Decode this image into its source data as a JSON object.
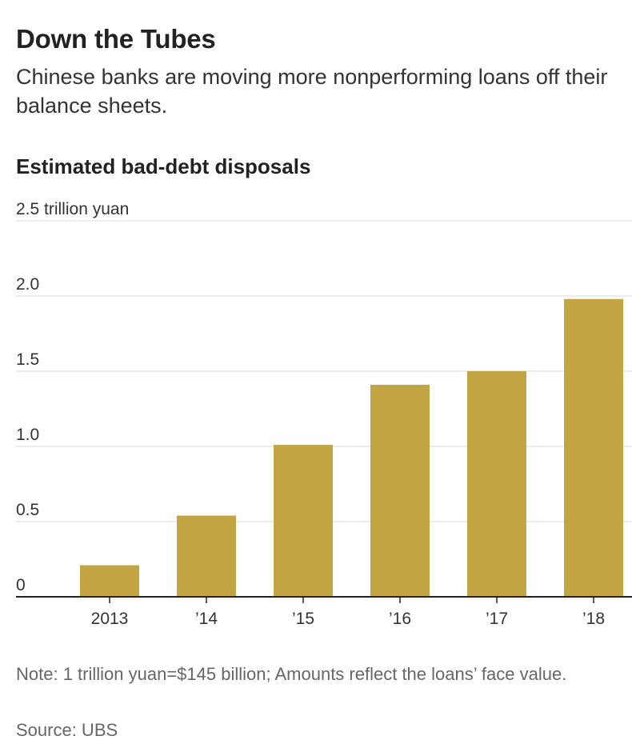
{
  "header": {
    "title": "Down the Tubes",
    "subtitle": "Chinese banks are moving more nonperforming loans off their balance sheets."
  },
  "chart_data": {
    "type": "bar",
    "title": "Estimated bad-debt disposals",
    "xlabel": "",
    "ylabel": "",
    "ylim": [
      0,
      2.5
    ],
    "y_ticks": [
      0,
      0.5,
      1.0,
      1.5,
      2.0,
      2.5
    ],
    "y_tick_labels": [
      "0",
      "0.5",
      "1.0",
      "1.5",
      "2.0",
      "2.5 trillion yuan"
    ],
    "categories": [
      "2013",
      "’14",
      "’15",
      "’16",
      "’17",
      "’18"
    ],
    "values": [
      0.21,
      0.54,
      1.01,
      1.41,
      1.5,
      1.98
    ],
    "grid": true,
    "bar_color": "#c4a544"
  },
  "footer": {
    "note": "Note: 1 trillion yuan=$145 billion; Amounts reflect the loans’ face value.",
    "source": "Source: UBS"
  },
  "colors": {
    "bar": "#c4a544",
    "grid": "#d9d9d9",
    "axis": "#222222"
  }
}
